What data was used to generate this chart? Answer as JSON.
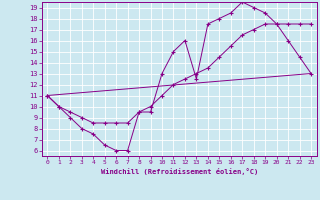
{
  "xlabel": "Windchill (Refroidissement éolien,°C)",
  "bg_color": "#cce8f0",
  "line_color": "#880088",
  "xlim": [
    -0.5,
    23.5
  ],
  "ylim": [
    5.5,
    19.5
  ],
  "xticks": [
    0,
    1,
    2,
    3,
    4,
    5,
    6,
    7,
    8,
    9,
    10,
    11,
    12,
    13,
    14,
    15,
    16,
    17,
    18,
    19,
    20,
    21,
    22,
    23
  ],
  "yticks": [
    6,
    7,
    8,
    9,
    10,
    11,
    12,
    13,
    14,
    15,
    16,
    17,
    18,
    19
  ],
  "series1_x": [
    0,
    1,
    2,
    3,
    4,
    5,
    6,
    7,
    8,
    9,
    10,
    11,
    12,
    13,
    14,
    15,
    16,
    17,
    18,
    19,
    20,
    21,
    22,
    23
  ],
  "series1_y": [
    11,
    10,
    9,
    8,
    7.5,
    6.5,
    6,
    6,
    9.5,
    9.5,
    13,
    15,
    16,
    12.5,
    17.5,
    18,
    18.5,
    19.5,
    19,
    18.5,
    17.5,
    16,
    14.5,
    13
  ],
  "series2_x": [
    0,
    1,
    2,
    3,
    4,
    5,
    6,
    7,
    8,
    9,
    10,
    11,
    12,
    13,
    14,
    15,
    16,
    17,
    18,
    19,
    20,
    21,
    22,
    23
  ],
  "series2_y": [
    11,
    10,
    9.5,
    9,
    8.5,
    8.5,
    8.5,
    8.5,
    9.5,
    10,
    11,
    12,
    12.5,
    13,
    13.5,
    14.5,
    15.5,
    16.5,
    17,
    17.5,
    17.5,
    17.5,
    17.5,
    17.5
  ],
  "series3_x": [
    0,
    23
  ],
  "series3_y": [
    11,
    13
  ],
  "tick_fontsize": 5,
  "xlabel_fontsize": 5
}
